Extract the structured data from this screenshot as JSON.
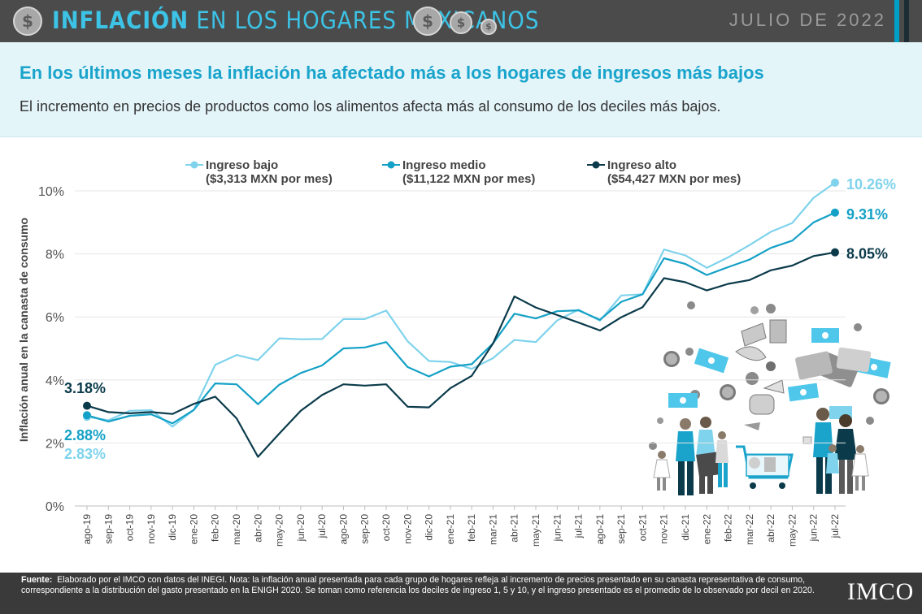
{
  "header": {
    "title_bold": "INFLACIÓN",
    "title_rest": " EN LOS HOGARES MEXICANOS",
    "date": "JULIO DE 2022",
    "coin_symbol": "$"
  },
  "subheader": {
    "headline": "En los últimos meses la inflación ha afectado más a los hogares de ingresos más bajos",
    "subline": "El incremento en precios de productos como los alimentos afecta más al consumo de los deciles más bajos."
  },
  "chart_data": {
    "type": "line",
    "ylabel": "Inflación anual en la canasta de consumo",
    "ylim": [
      0,
      10
    ],
    "yticks": [
      0,
      2,
      4,
      6,
      8,
      10
    ],
    "ytick_labels": [
      "0%",
      "2%",
      "4%",
      "6%",
      "8%",
      "10%"
    ],
    "categories": [
      "ago-19",
      "sep-19",
      "oct-19",
      "nov-19",
      "dic-19",
      "ene-20",
      "feb-20",
      "mar-20",
      "abr-20",
      "may-20",
      "jun-20",
      "jul-20",
      "ago-20",
      "sep-20",
      "oct-20",
      "nov-20",
      "dic-20",
      "ene-21",
      "feb-21",
      "mar-21",
      "abr-21",
      "may-21",
      "jun-21",
      "jul-21",
      "ago-21",
      "sep-21",
      "oct-21",
      "nov-21",
      "dic-21",
      "ene-22",
      "feb-22",
      "mar-22",
      "abr-22",
      "may-22",
      "jun-22",
      "jul-22"
    ],
    "series": [
      {
        "name": "Ingreso bajo",
        "legend_line2": "($3,313 MXN por mes)",
        "color": "#7fd3ec",
        "start_label": "2.83%",
        "end_label": "10.26%",
        "values": [
          2.83,
          2.72,
          3.02,
          3.04,
          2.52,
          3.05,
          4.48,
          4.79,
          4.63,
          5.32,
          5.29,
          5.3,
          5.93,
          5.93,
          6.2,
          5.23,
          4.6,
          4.57,
          4.35,
          4.69,
          5.27,
          5.2,
          5.89,
          6.23,
          5.88,
          6.68,
          6.72,
          8.14,
          7.95,
          7.56,
          7.89,
          8.28,
          8.7,
          8.98,
          9.78,
          10.26
        ]
      },
      {
        "name": "Ingreso medio",
        "legend_line2": "($11,122 MXN por mes)",
        "color": "#15a1c6",
        "start_label": "2.88%",
        "end_label": "9.31%",
        "values": [
          2.88,
          2.68,
          2.86,
          2.91,
          2.62,
          3.05,
          3.89,
          3.86,
          3.23,
          3.85,
          4.22,
          4.46,
          5.0,
          5.03,
          5.2,
          4.41,
          4.11,
          4.42,
          4.5,
          5.16,
          6.1,
          5.95,
          6.18,
          6.21,
          5.91,
          6.48,
          6.72,
          7.86,
          7.68,
          7.33,
          7.58,
          7.82,
          8.19,
          8.42,
          9.0,
          9.31
        ]
      },
      {
        "name": "Ingreso alto",
        "legend_line2": "($54,427 MXN por mes)",
        "color": "#0b3b4b",
        "start_label": "3.18%",
        "end_label": "8.05%",
        "values": [
          3.18,
          2.98,
          2.94,
          2.98,
          2.92,
          3.24,
          3.47,
          2.78,
          1.56,
          2.3,
          3.02,
          3.52,
          3.86,
          3.82,
          3.86,
          3.15,
          3.13,
          3.74,
          4.13,
          5.16,
          6.65,
          6.3,
          6.06,
          5.82,
          5.57,
          5.99,
          6.31,
          7.23,
          7.1,
          6.84,
          7.05,
          7.17,
          7.48,
          7.63,
          7.93,
          8.05
        ]
      }
    ]
  },
  "footer": {
    "source_label": "Fuente:",
    "source_text": "Elaborado por el IMCO con datos del INEGI. Nota: la inflación anual presentada para cada grupo de hogares refleja al incremento de precios presentado en su canasta representativa de consumo, correspondiente a la distribución del gasto presentado en la ENIGH 2020. Se toman como referencia los deciles de ingreso 1, 5 y 10, y el ingreso presentado es el promedio de lo observado por decil en 2020.",
    "logo": "IMCO"
  }
}
